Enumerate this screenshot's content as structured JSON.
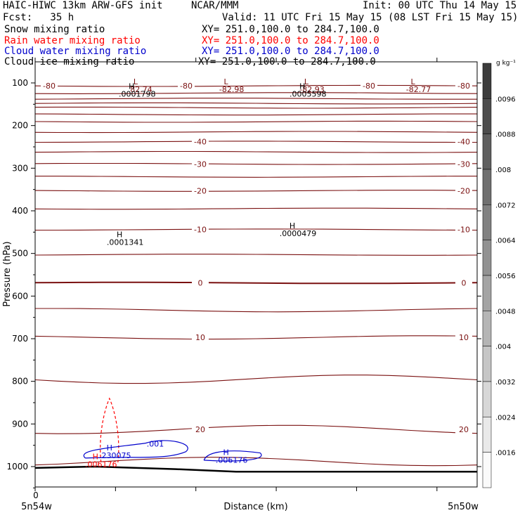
{
  "header": {
    "title": "HAIC-HIWC 13km ARW-GFS init",
    "org": "NCAR/MMM",
    "init": "Init: 00 UTC Thu 14 May 15",
    "fcst": "Fcst:   35 h",
    "valid": "Valid: 11 UTC Fri 15 May 15 (08 LST Fri 15 May 15)"
  },
  "fields": [
    {
      "name": "Snow mixing ratio",
      "xy": "XY= 251.0,100.0 to 284.7,100.0",
      "color": "#000000"
    },
    {
      "name": "Rain water mixing ratio",
      "xy": "XY= 251.0,100.0 to 284.7,100.0",
      "color": "#ff0000"
    },
    {
      "name": "Cloud water mixing ratio",
      "xy": "XY= 251.0,100.0 to 284.7,100.0",
      "color": "#0000cc"
    },
    {
      "name": "Cloud ice mixing ratio",
      "xy": "XY= 251.0,100.0 to 284.7,100.0",
      "color": "#000000"
    }
  ],
  "colors": {
    "temperature_contour": "#7a1010",
    "rain": "#ff0000",
    "cloud_water": "#0000cc",
    "terrain": "#000000"
  },
  "chart_data": {
    "type": "cross-section",
    "ylabel": "Pressure (hPa)",
    "xlabel": "Distance (km)",
    "y_ticks": [
      100,
      200,
      300,
      400,
      500,
      600,
      700,
      800,
      900,
      1000
    ],
    "ylim": [
      1060,
      50
    ],
    "xlim": [
      0,
      220
    ],
    "x_tick_label": "0",
    "x_end_labels": [
      "5n54w",
      "5n50w"
    ],
    "temperature_contours": [
      {
        "value": -80,
        "p": 107,
        "labels": [
          "-80",
          "-80",
          "-80",
          "-80"
        ]
      },
      {
        "value": -75,
        "p": 124,
        "labels": []
      },
      {
        "value": -70,
        "p": 137,
        "labels": []
      },
      {
        "value": -65,
        "p": 148,
        "labels": []
      },
      {
        "value": -60,
        "p": 158,
        "labels": []
      },
      {
        "value": -55,
        "p": 174,
        "labels": []
      },
      {
        "value": -50,
        "p": 191,
        "labels": []
      },
      {
        "value": -45,
        "p": 215,
        "labels": []
      },
      {
        "value": -40,
        "p": 238,
        "labels": [
          "-40",
          "-40"
        ]
      },
      {
        "value": -35,
        "p": 262,
        "labels": []
      },
      {
        "value": -30,
        "p": 290,
        "labels": [
          "-30",
          "-30"
        ]
      },
      {
        "value": -25,
        "p": 320,
        "labels": []
      },
      {
        "value": -20,
        "p": 353,
        "labels": [
          "-20",
          "-20"
        ]
      },
      {
        "value": -15,
        "p": 395,
        "labels": []
      },
      {
        "value": -10,
        "p": 444,
        "labels": [
          "-10",
          "-10"
        ]
      },
      {
        "value": -5,
        "p": 503,
        "labels": []
      },
      {
        "value": 0,
        "p": 569,
        "labels": [
          "0",
          "0"
        ]
      },
      {
        "value": 5,
        "p": 633,
        "labels": []
      },
      {
        "value": 10,
        "p": 697,
        "labels": [
          "10",
          "10"
        ]
      },
      {
        "value": 15,
        "p": 795,
        "labels": []
      },
      {
        "value": 20,
        "p": 913,
        "labels": [
          "20",
          "20"
        ]
      },
      {
        "value": 25,
        "p": 988,
        "labels": []
      }
    ],
    "annotations": [
      {
        "mark": "L",
        "value": "82.74",
        "x": 50,
        "p": 103
      },
      {
        "mark": "L",
        "value": "-82.98",
        "x": 95,
        "p": 103
      },
      {
        "mark": "L",
        "value": "-82.93",
        "x": 135,
        "p": 103
      },
      {
        "mark": "L",
        "value": "-82.77",
        "x": 188,
        "p": 103
      },
      {
        "mark": "H",
        "value": ".0001798",
        "x": 48,
        "p": 114
      },
      {
        "mark": "H",
        "value": ".0005598",
        "x": 133,
        "p": 114
      },
      {
        "mark": "H",
        "value": ".0001341",
        "x": 42,
        "p": 462
      },
      {
        "mark": "H",
        "value": ".0000479",
        "x": 128,
        "p": 441
      },
      {
        "mark": "H",
        "value": ".230075",
        "x": 37,
        "p": 962
      },
      {
        "mark": "H",
        "value": ".006176",
        "x": 30,
        "p": 983
      },
      {
        "mark": "H",
        "value": ".006176",
        "x": 95,
        "p": 973
      },
      {
        "mark": "",
        "value": ".001",
        "x": 57,
        "p": 935
      }
    ],
    "colorbar": {
      "unit": "g kg⁻¹",
      "labels": [
        ".0096",
        ".0088",
        ".008",
        ".0072",
        ".0064",
        ".0056",
        ".0048",
        ".004",
        ".0032",
        ".0024",
        ".0016"
      ]
    }
  }
}
